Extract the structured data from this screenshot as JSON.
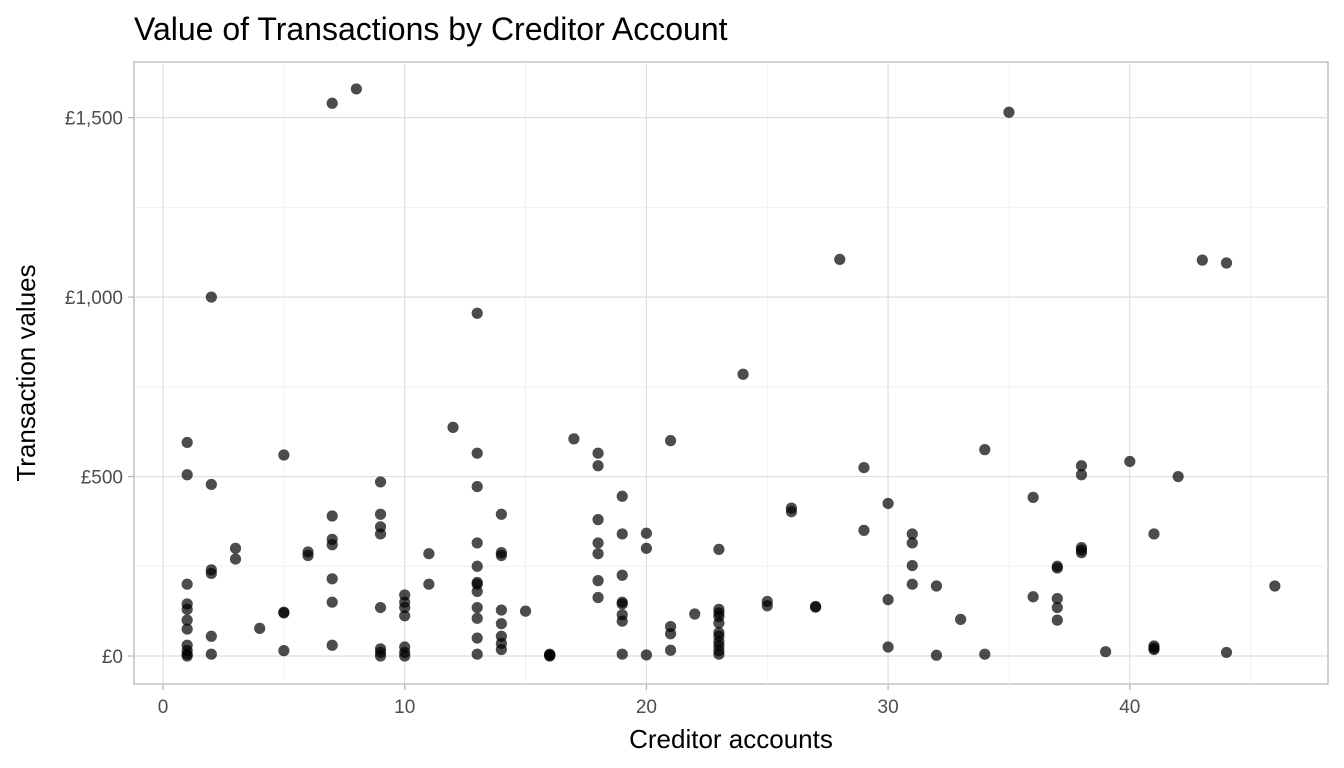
{
  "chart_data": {
    "type": "scatter",
    "title": "Value of Transactions by Creditor Account",
    "xlabel": "Creditor accounts",
    "ylabel": "Transaction values",
    "xlim": [
      -1.2,
      48.2
    ],
    "ylim": [
      -78,
      1655
    ],
    "x_ticks": [
      0,
      10,
      20,
      30,
      40
    ],
    "x_tick_labels": [
      "0",
      "10",
      "20",
      "30",
      "40"
    ],
    "y_ticks": [
      0,
      500,
      1000,
      1500
    ],
    "y_tick_labels": [
      "£0",
      "£500",
      "£1,000",
      "£1,500"
    ],
    "grid": true,
    "legend": "none",
    "point_color": "#000000",
    "points": [
      [
        1,
        595
      ],
      [
        1,
        505
      ],
      [
        1,
        200
      ],
      [
        1,
        145
      ],
      [
        1,
        130
      ],
      [
        1,
        100
      ],
      [
        1,
        75
      ],
      [
        1,
        30
      ],
      [
        1,
        15
      ],
      [
        1,
        5
      ],
      [
        1,
        0
      ],
      [
        2,
        1000
      ],
      [
        2,
        478
      ],
      [
        2,
        240
      ],
      [
        2,
        230
      ],
      [
        2,
        55
      ],
      [
        2,
        5
      ],
      [
        3,
        300
      ],
      [
        3,
        270
      ],
      [
        4,
        77
      ],
      [
        5,
        560
      ],
      [
        5,
        122
      ],
      [
        5,
        120
      ],
      [
        5,
        15
      ],
      [
        6,
        290
      ],
      [
        6,
        280
      ],
      [
        7,
        1540
      ],
      [
        7,
        390
      ],
      [
        7,
        325
      ],
      [
        7,
        310
      ],
      [
        7,
        215
      ],
      [
        7,
        150
      ],
      [
        7,
        30
      ],
      [
        8,
        1580
      ],
      [
        9,
        485
      ],
      [
        9,
        395
      ],
      [
        9,
        360
      ],
      [
        9,
        340
      ],
      [
        9,
        135
      ],
      [
        9,
        20
      ],
      [
        9,
        10
      ],
      [
        9,
        0
      ],
      [
        10,
        170
      ],
      [
        10,
        150
      ],
      [
        10,
        135
      ],
      [
        10,
        112
      ],
      [
        10,
        25
      ],
      [
        10,
        10
      ],
      [
        10,
        0
      ],
      [
        11,
        285
      ],
      [
        11,
        200
      ],
      [
        12,
        637
      ],
      [
        13,
        955
      ],
      [
        13,
        565
      ],
      [
        13,
        472
      ],
      [
        13,
        315
      ],
      [
        13,
        250
      ],
      [
        13,
        205
      ],
      [
        13,
        200
      ],
      [
        13,
        180
      ],
      [
        13,
        135
      ],
      [
        13,
        105
      ],
      [
        13,
        50
      ],
      [
        13,
        5
      ],
      [
        14,
        395
      ],
      [
        14,
        288
      ],
      [
        14,
        280
      ],
      [
        14,
        128
      ],
      [
        14,
        90
      ],
      [
        14,
        55
      ],
      [
        14,
        35
      ],
      [
        14,
        18
      ],
      [
        15,
        125
      ],
      [
        16,
        5
      ],
      [
        16,
        3
      ],
      [
        16,
        2
      ],
      [
        16,
        0
      ],
      [
        17,
        605
      ],
      [
        18,
        565
      ],
      [
        18,
        530
      ],
      [
        18,
        380
      ],
      [
        18,
        315
      ],
      [
        18,
        285
      ],
      [
        18,
        210
      ],
      [
        18,
        163
      ],
      [
        19,
        445
      ],
      [
        19,
        340
      ],
      [
        19,
        225
      ],
      [
        19,
        150
      ],
      [
        19,
        145
      ],
      [
        19,
        115
      ],
      [
        19,
        97
      ],
      [
        19,
        5
      ],
      [
        20,
        342
      ],
      [
        20,
        300
      ],
      [
        20,
        3
      ],
      [
        21,
        600
      ],
      [
        21,
        82
      ],
      [
        21,
        62
      ],
      [
        21,
        16
      ],
      [
        22,
        117
      ],
      [
        23,
        297
      ],
      [
        23,
        130
      ],
      [
        23,
        120
      ],
      [
        23,
        110
      ],
      [
        23,
        92
      ],
      [
        23,
        65
      ],
      [
        23,
        55
      ],
      [
        23,
        40
      ],
      [
        23,
        28
      ],
      [
        23,
        15
      ],
      [
        23,
        5
      ],
      [
        24,
        785
      ],
      [
        25,
        152
      ],
      [
        25,
        140
      ],
      [
        26,
        412
      ],
      [
        26,
        402
      ],
      [
        27,
        138
      ],
      [
        27,
        136
      ],
      [
        28,
        1105
      ],
      [
        29,
        525
      ],
      [
        29,
        350
      ],
      [
        30,
        425
      ],
      [
        30,
        157
      ],
      [
        30,
        25
      ],
      [
        31,
        340
      ],
      [
        31,
        315
      ],
      [
        31,
        252
      ],
      [
        31,
        200
      ],
      [
        32,
        195
      ],
      [
        32,
        2
      ],
      [
        33,
        102
      ],
      [
        34,
        575
      ],
      [
        34,
        5
      ],
      [
        35,
        1515
      ],
      [
        36,
        442
      ],
      [
        36,
        165
      ],
      [
        37,
        250
      ],
      [
        37,
        245
      ],
      [
        37,
        160
      ],
      [
        37,
        135
      ],
      [
        37,
        100
      ],
      [
        38,
        530
      ],
      [
        38,
        505
      ],
      [
        38,
        302
      ],
      [
        38,
        295
      ],
      [
        38,
        288
      ],
      [
        39,
        12
      ],
      [
        40,
        542
      ],
      [
        41,
        340
      ],
      [
        41,
        28
      ],
      [
        41,
        22
      ],
      [
        41,
        18
      ],
      [
        42,
        500
      ],
      [
        43,
        1103
      ],
      [
        44,
        1095
      ],
      [
        44,
        10
      ],
      [
        46,
        195
      ]
    ]
  }
}
